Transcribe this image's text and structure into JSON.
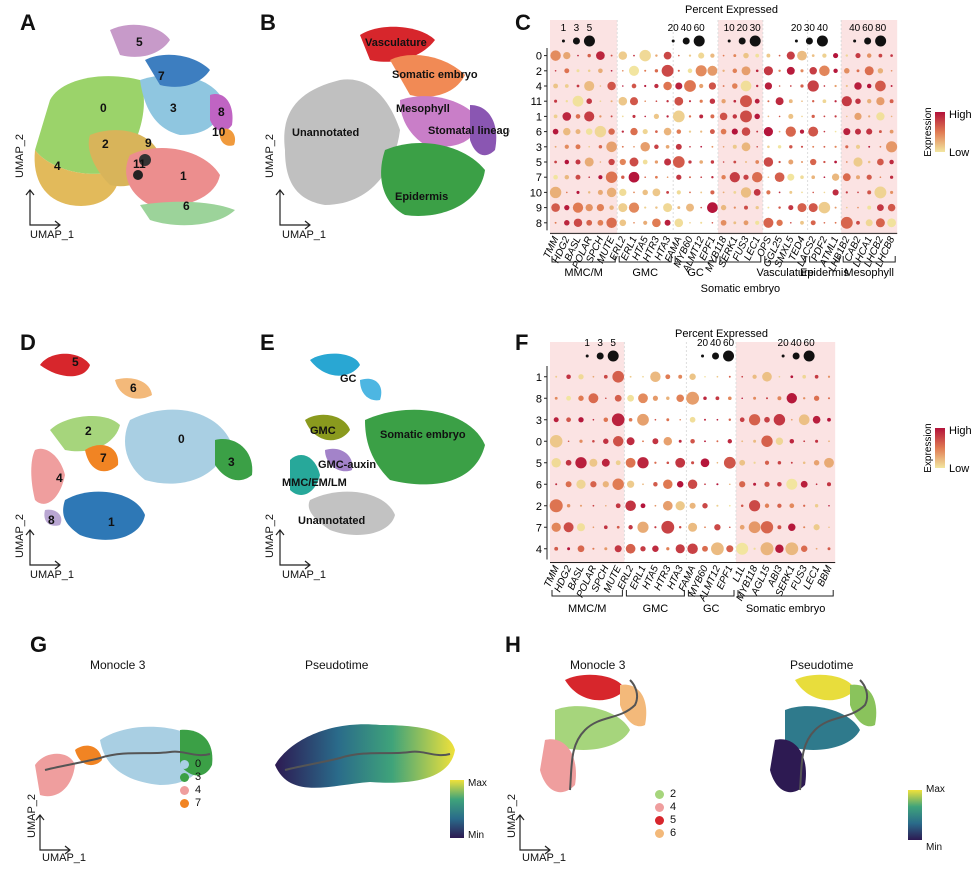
{
  "panels": {
    "A": {
      "letter": "A",
      "umap_x": "UMAP_1",
      "umap_y": "UMAP_2",
      "clusters": [
        {
          "id": "0",
          "color": "#9bd36a"
        },
        {
          "id": "1",
          "color": "#ec8e8e"
        },
        {
          "id": "2",
          "color": "#d8b45a"
        },
        {
          "id": "3",
          "color": "#8fc6e0"
        },
        {
          "id": "4",
          "color": "#e2ba5b"
        },
        {
          "id": "5",
          "color": "#c79ac9"
        },
        {
          "id": "6",
          "color": "#9cd39a"
        },
        {
          "id": "7",
          "color": "#3d7ec0"
        },
        {
          "id": "8",
          "color": "#c064c3"
        },
        {
          "id": "9",
          "color": "#333333"
        },
        {
          "id": "10",
          "color": "#f09a3c"
        },
        {
          "id": "11",
          "color": "#222222"
        }
      ]
    },
    "B": {
      "letter": "B",
      "umap_x": "UMAP_1",
      "umap_y": "UMAP_2",
      "labels": [
        "Vasculature",
        "Somatic embryo",
        "Mesophyll",
        "Stomatal lineage",
        "Unannotated",
        "Epidermis"
      ]
    },
    "C": {
      "letter": "C",
      "title": "Percent Expressed",
      "size_legend": [
        [
          "1",
          "3",
          "5"
        ],
        [
          "20",
          "40",
          "60"
        ],
        [
          "10",
          "20",
          "30"
        ],
        [
          "20",
          "30",
          "40"
        ],
        [
          "40",
          "60",
          "80"
        ]
      ],
      "rows": [
        "0",
        "2",
        "4",
        "11",
        "1",
        "6",
        "3",
        "5",
        "7",
        "10",
        "9",
        "8"
      ],
      "genes": [
        "TMM",
        "HDG2",
        "BASL",
        "POLAR",
        "SPCH",
        "MUTE",
        "ERL2",
        "ERL1",
        "HTA5",
        "HTR3",
        "HTA3",
        "FAMA",
        "MYB60",
        "ALMT12",
        "EPF1",
        "MYB118",
        "SERK1",
        "FUS3",
        "LEC1",
        "OPS",
        "GGL25",
        "SMXL5",
        "TED4",
        "LACS2",
        "PDF2",
        "ATML1",
        "LHB1B2",
        "CAB2",
        "LHCA1",
        "LHCB2",
        "LHCB8"
      ],
      "groups": [
        "MMC/M",
        "GMC",
        "GC",
        "Somatic embryo",
        "Vasculature",
        "Epidermis",
        "Mesophyll"
      ],
      "colorbar": {
        "title": "Expression",
        "high": "High",
        "low": "Low"
      }
    },
    "D": {
      "letter": "D",
      "umap_x": "UMAP_1",
      "umap_y": "UMAP_2",
      "clusters": [
        {
          "id": "5",
          "color": "#d7262c"
        },
        {
          "id": "6",
          "color": "#f3b97a"
        },
        {
          "id": "2",
          "color": "#a6d57c"
        },
        {
          "id": "0",
          "color": "#a9cfe3"
        },
        {
          "id": "3",
          "color": "#3ba046"
        },
        {
          "id": "4",
          "color": "#ef9e9e"
        },
        {
          "id": "7",
          "color": "#f18423"
        },
        {
          "id": "8",
          "color": "#b9a6d2"
        },
        {
          "id": "1",
          "color": "#2e78b6"
        }
      ]
    },
    "E": {
      "letter": "E",
      "umap_x": "UMAP_1",
      "umap_y": "UMAP_2",
      "labels": [
        "GC",
        "GMC",
        "Somatic embryo",
        "GMC-auxin",
        "MMC/EM/LM",
        "Unannotated"
      ]
    },
    "F": {
      "letter": "F",
      "title": "Percent Expressed",
      "size_legend": [
        [
          "1",
          "3",
          "5"
        ],
        [
          "20",
          "40",
          "60"
        ],
        [
          "20",
          "40",
          "60"
        ]
      ],
      "rows": [
        "1",
        "8",
        "3",
        "0",
        "5",
        "6",
        "2",
        "7",
        "4"
      ],
      "genes": [
        "TMM",
        "HDG2",
        "BASL",
        "POLAR",
        "SPCH",
        "MUTE",
        "ERL2",
        "ERL1",
        "HTA5",
        "HTR3",
        "HTA3",
        "FAMA",
        "MYB60",
        "ALMT12",
        "EPF1",
        "L1L",
        "MYB118",
        "AGL15",
        "ABI3",
        "SERK1",
        "FUS3",
        "LEC1",
        "BBM"
      ],
      "groups": [
        "MMC/M",
        "GMC",
        "GC",
        "Somatic embryo"
      ],
      "colorbar": {
        "title": "Expression",
        "high": "High",
        "low": "Low"
      }
    },
    "G": {
      "letter": "G",
      "left_title": "Monocle 3",
      "right_title": "Pseudotime",
      "umap_x": "UMAP_1",
      "umap_y": "UMAP_2",
      "legend": [
        {
          "id": "0",
          "color": "#a9cfe3"
        },
        {
          "id": "3",
          "color": "#3ba046"
        },
        {
          "id": "4",
          "color": "#ef9e9e"
        },
        {
          "id": "7",
          "color": "#f18423"
        }
      ],
      "pseudo_max": "Max",
      "pseudo_min": "Min"
    },
    "H": {
      "letter": "H",
      "left_title": "Monocle 3",
      "right_title": "Pseudotime",
      "umap_x": "UMAP_1",
      "umap_y": "UMAP_2",
      "legend": [
        {
          "id": "2",
          "color": "#a6d57c"
        },
        {
          "id": "4",
          "color": "#ef9e9e"
        },
        {
          "id": "5",
          "color": "#d7262c"
        },
        {
          "id": "6",
          "color": "#f3b97a"
        }
      ],
      "pseudo_max": "Max",
      "pseudo_min": "Min"
    }
  },
  "colors": {
    "shade": "#fbe3e3",
    "dot_high": "#b3123a",
    "dot_mid": "#e07a52",
    "dot_low": "#f2e6a0"
  }
}
